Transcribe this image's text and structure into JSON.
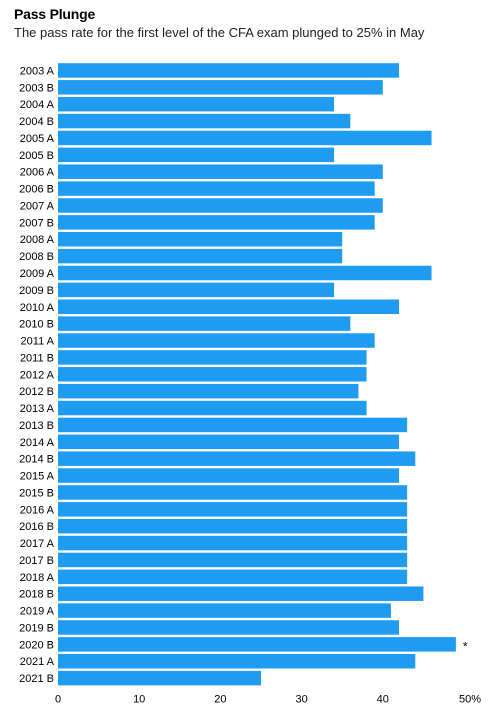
{
  "chart_data": {
    "type": "bar",
    "orientation": "horizontal",
    "title": "Pass Plunge",
    "subtitle": "The pass rate for the first level of the CFA exam plunged to 25% in May",
    "categories": [
      "2003 A",
      "2003 B",
      "2004 A",
      "2004 B",
      "2005 A",
      "2005 B",
      "2006 A",
      "2006 B",
      "2007 A",
      "2007 B",
      "2008 A",
      "2008 B",
      "2009 A",
      "2009 B",
      "2010 A",
      "2010 B",
      "2011 A",
      "2011 B",
      "2012 A",
      "2012 B",
      "2013 A",
      "2013 B",
      "2014 A",
      "2014 B",
      "2015 A",
      "2015 B",
      "2016 A",
      "2016 B",
      "2017 A",
      "2017 B",
      "2018 A",
      "2018 B",
      "2019 A",
      "2019 B",
      "2020 B",
      "2021 A",
      "2021 B"
    ],
    "values": [
      42,
      40,
      34,
      36,
      46,
      34,
      40,
      39,
      40,
      39,
      35,
      35,
      46,
      34,
      42,
      36,
      39,
      38,
      38,
      37,
      38,
      43,
      42,
      44,
      42,
      43,
      43,
      43,
      43,
      43,
      43,
      45,
      41,
      42,
      49,
      44,
      25
    ],
    "xlim": [
      0,
      50
    ],
    "xticks": [
      "0",
      "10",
      "20",
      "30",
      "40",
      "50%"
    ],
    "tick_values": [
      0,
      10,
      20,
      30,
      40,
      50
    ],
    "annotations": [
      {
        "category": "2020 B",
        "text": "*"
      }
    ],
    "bar_color": "#1f9cf0",
    "grid": false,
    "legend": "none"
  }
}
